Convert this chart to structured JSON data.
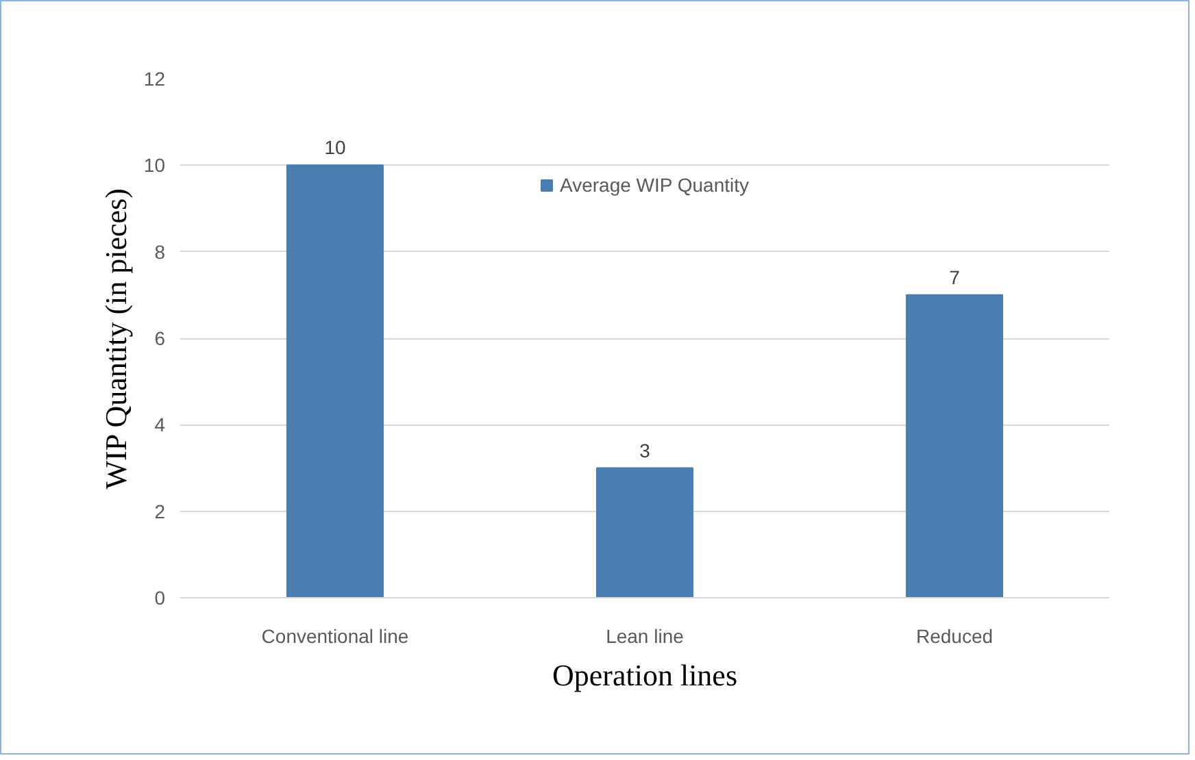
{
  "chart_data": {
    "type": "bar",
    "xlabel": "Operation lines",
    "ylabel": "WIP Quantity (in pieces)",
    "categories": [
      "Conventional line",
      "Lean line",
      "Reduced"
    ],
    "series": [
      {
        "name": "Average WIP Quantity",
        "color": "#4a7eb0",
        "values": [
          10,
          3,
          7
        ]
      }
    ],
    "ylim": [
      0,
      12
    ],
    "yticks": [
      0,
      2,
      4,
      6,
      8,
      10,
      12
    ],
    "grid": "y",
    "legend": "top",
    "data_labels": true
  }
}
